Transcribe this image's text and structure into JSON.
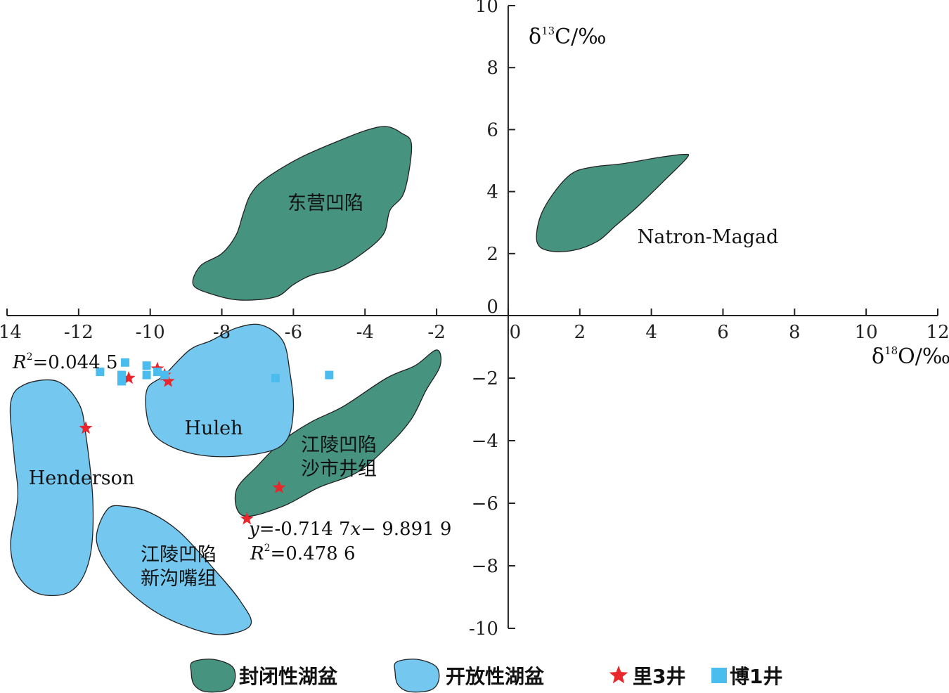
{
  "colors": {
    "closed": "#469380",
    "open": "#74c7ef",
    "li3": "#e8262b",
    "bo1": "#4bbcee",
    "axis": "#222222",
    "outline": "#222222"
  },
  "chart_data": {
    "type": "scatter",
    "xlim": [
      -14,
      12
    ],
    "ylim": [
      -10,
      10
    ],
    "x_ticks": [
      "-14",
      "-12",
      "-10",
      "-8",
      "-6",
      "-4",
      "-2",
      "0",
      "2",
      "4",
      "6",
      "8",
      "10",
      "12"
    ],
    "y_ticks": [
      "10",
      "8",
      "6",
      "4",
      "2",
      "0",
      "−2",
      "−4",
      "−6",
      "−8",
      "-10"
    ],
    "xlabel": {
      "pre": "δ",
      "sup": "18",
      "post": "O/‰"
    },
    "ylabel": {
      "pre": "δ",
      "sup": "13",
      "post": "C/‰"
    },
    "regions": [
      {
        "label": "东营凹陷",
        "kind": "closed",
        "points": [
          [
            -3.0,
            5.9
          ],
          [
            -2.7,
            5.5
          ],
          [
            -2.9,
            4.0
          ],
          [
            -3.3,
            3.4
          ],
          [
            -3.5,
            2.6
          ],
          [
            -4.2,
            1.9
          ],
          [
            -4.8,
            1.5
          ],
          [
            -5.5,
            1.3
          ],
          [
            -6.0,
            1.0
          ],
          [
            -6.5,
            0.6
          ],
          [
            -7.5,
            0.5
          ],
          [
            -8.3,
            0.7
          ],
          [
            -8.8,
            1.0
          ],
          [
            -8.6,
            1.6
          ],
          [
            -8.0,
            2.0
          ],
          [
            -7.6,
            2.6
          ],
          [
            -7.4,
            3.3
          ],
          [
            -7.2,
            3.9
          ],
          [
            -6.8,
            4.4
          ],
          [
            -5.8,
            5.1
          ],
          [
            -4.6,
            5.7
          ],
          [
            -3.9,
            6.0
          ],
          [
            -3.4,
            6.1
          ]
        ]
      },
      {
        "label": "Natron-Magad",
        "kind": "closed",
        "points": [
          [
            5.0,
            5.1
          ],
          [
            4.4,
            4.4
          ],
          [
            3.6,
            3.5
          ],
          [
            3.0,
            2.9
          ],
          [
            2.5,
            2.4
          ],
          [
            1.8,
            2.1
          ],
          [
            1.1,
            2.1
          ],
          [
            0.8,
            2.4
          ],
          [
            0.9,
            3.2
          ],
          [
            1.3,
            4.0
          ],
          [
            1.8,
            4.6
          ],
          [
            2.4,
            4.8
          ],
          [
            3.2,
            4.9
          ],
          [
            4.2,
            5.1
          ],
          [
            4.9,
            5.2
          ]
        ]
      },
      {
        "label": "江陵凹陷沙市井组",
        "kind": "closed",
        "label_lines": [
          "江陵凹陷",
          "沙市井组"
        ],
        "points": [
          [
            -2.0,
            -1.1
          ],
          [
            -2.6,
            -1.6
          ],
          [
            -3.4,
            -2.0
          ],
          [
            -4.6,
            -2.9
          ],
          [
            -5.5,
            -3.4
          ],
          [
            -6.3,
            -4.0
          ],
          [
            -7.0,
            -4.8
          ],
          [
            -7.6,
            -5.6
          ],
          [
            -7.4,
            -6.4
          ],
          [
            -6.3,
            -6.1
          ],
          [
            -5.3,
            -5.5
          ],
          [
            -4.2,
            -5.0
          ],
          [
            -3.3,
            -4.1
          ],
          [
            -2.7,
            -3.3
          ],
          [
            -2.3,
            -2.4
          ],
          [
            -1.9,
            -1.6
          ]
        ]
      },
      {
        "label": "Huleh",
        "kind": "open",
        "points": [
          [
            -8.3,
            -0.8
          ],
          [
            -8.9,
            -1.1
          ],
          [
            -9.6,
            -1.9
          ],
          [
            -10.1,
            -2.4
          ],
          [
            -10.0,
            -3.6
          ],
          [
            -9.4,
            -4.2
          ],
          [
            -8.3,
            -4.5
          ],
          [
            -6.9,
            -4.4
          ],
          [
            -6.2,
            -4.0
          ],
          [
            -6.0,
            -3.0
          ],
          [
            -6.1,
            -1.8
          ],
          [
            -6.3,
            -0.8
          ],
          [
            -6.9,
            -0.3
          ],
          [
            -7.6,
            -0.4
          ]
        ]
      },
      {
        "label": "Henderson",
        "kind": "open",
        "points": [
          [
            -12.6,
            -2.1
          ],
          [
            -13.5,
            -2.2
          ],
          [
            -13.9,
            -2.8
          ],
          [
            -13.8,
            -4.5
          ],
          [
            -13.7,
            -5.8
          ],
          [
            -13.9,
            -7.3
          ],
          [
            -13.7,
            -8.3
          ],
          [
            -13.1,
            -8.9
          ],
          [
            -12.2,
            -8.8
          ],
          [
            -11.7,
            -7.8
          ],
          [
            -11.6,
            -6.0
          ],
          [
            -11.8,
            -3.8
          ],
          [
            -12.0,
            -2.8
          ]
        ]
      },
      {
        "label": "江陵凹陷新沟嘴组",
        "kind": "open",
        "label_lines": [
          "江陵凹陷",
          "新沟嘴组"
        ],
        "points": [
          [
            -11.2,
            -6.2
          ],
          [
            -11.5,
            -7.2
          ],
          [
            -11.0,
            -8.3
          ],
          [
            -10.2,
            -9.2
          ],
          [
            -9.3,
            -9.8
          ],
          [
            -8.1,
            -10.2
          ],
          [
            -7.2,
            -9.9
          ],
          [
            -7.5,
            -9.1
          ],
          [
            -8.3,
            -8.0
          ],
          [
            -9.2,
            -6.9
          ],
          [
            -10.0,
            -6.3
          ],
          [
            -10.7,
            -6.1
          ]
        ]
      }
    ],
    "series": [
      {
        "name": "里3井",
        "marker": "star",
        "color": "#e8262b",
        "x": [
          -9.8,
          -9.6,
          -9.5,
          -10.6,
          -11.8,
          -6.4,
          -7.3
        ],
        "y": [
          -1.7,
          -1.9,
          -2.1,
          -2.0,
          -3.6,
          -5.5,
          -6.5
        ]
      },
      {
        "name": "博1井",
        "marker": "square",
        "color": "#4bbcee",
        "x": [
          -11.4,
          -10.7,
          -10.8,
          -10.8,
          -10.1,
          -10.1,
          -9.8,
          -9.6,
          -6.5,
          -5.0
        ],
        "y": [
          -1.8,
          -1.5,
          -1.9,
          -2.1,
          -1.6,
          -1.9,
          -1.8,
          -1.9,
          -2.0,
          -1.9
        ]
      }
    ],
    "annotations": {
      "r2_left": {
        "pre": "R",
        "sup": "2",
        "post": "=0.044 5"
      },
      "eq_line1": {
        "y": "y",
        "mid": "=-0.714 7",
        "x": "x",
        "post": "− 9.891 9"
      },
      "r2_right": {
        "pre": "R",
        "sup": "2",
        "post": "=0.478 6"
      }
    },
    "legend": [
      {
        "label": "封闭性湖盆",
        "marker": "blob",
        "kind": "closed"
      },
      {
        "label": "开放性湖盆",
        "marker": "blob",
        "kind": "open"
      },
      {
        "label": "里3井",
        "marker": "star",
        "kind": "li3"
      },
      {
        "label": "博1井",
        "marker": "square",
        "kind": "bo1"
      }
    ],
    "legend_position": "bottom"
  }
}
